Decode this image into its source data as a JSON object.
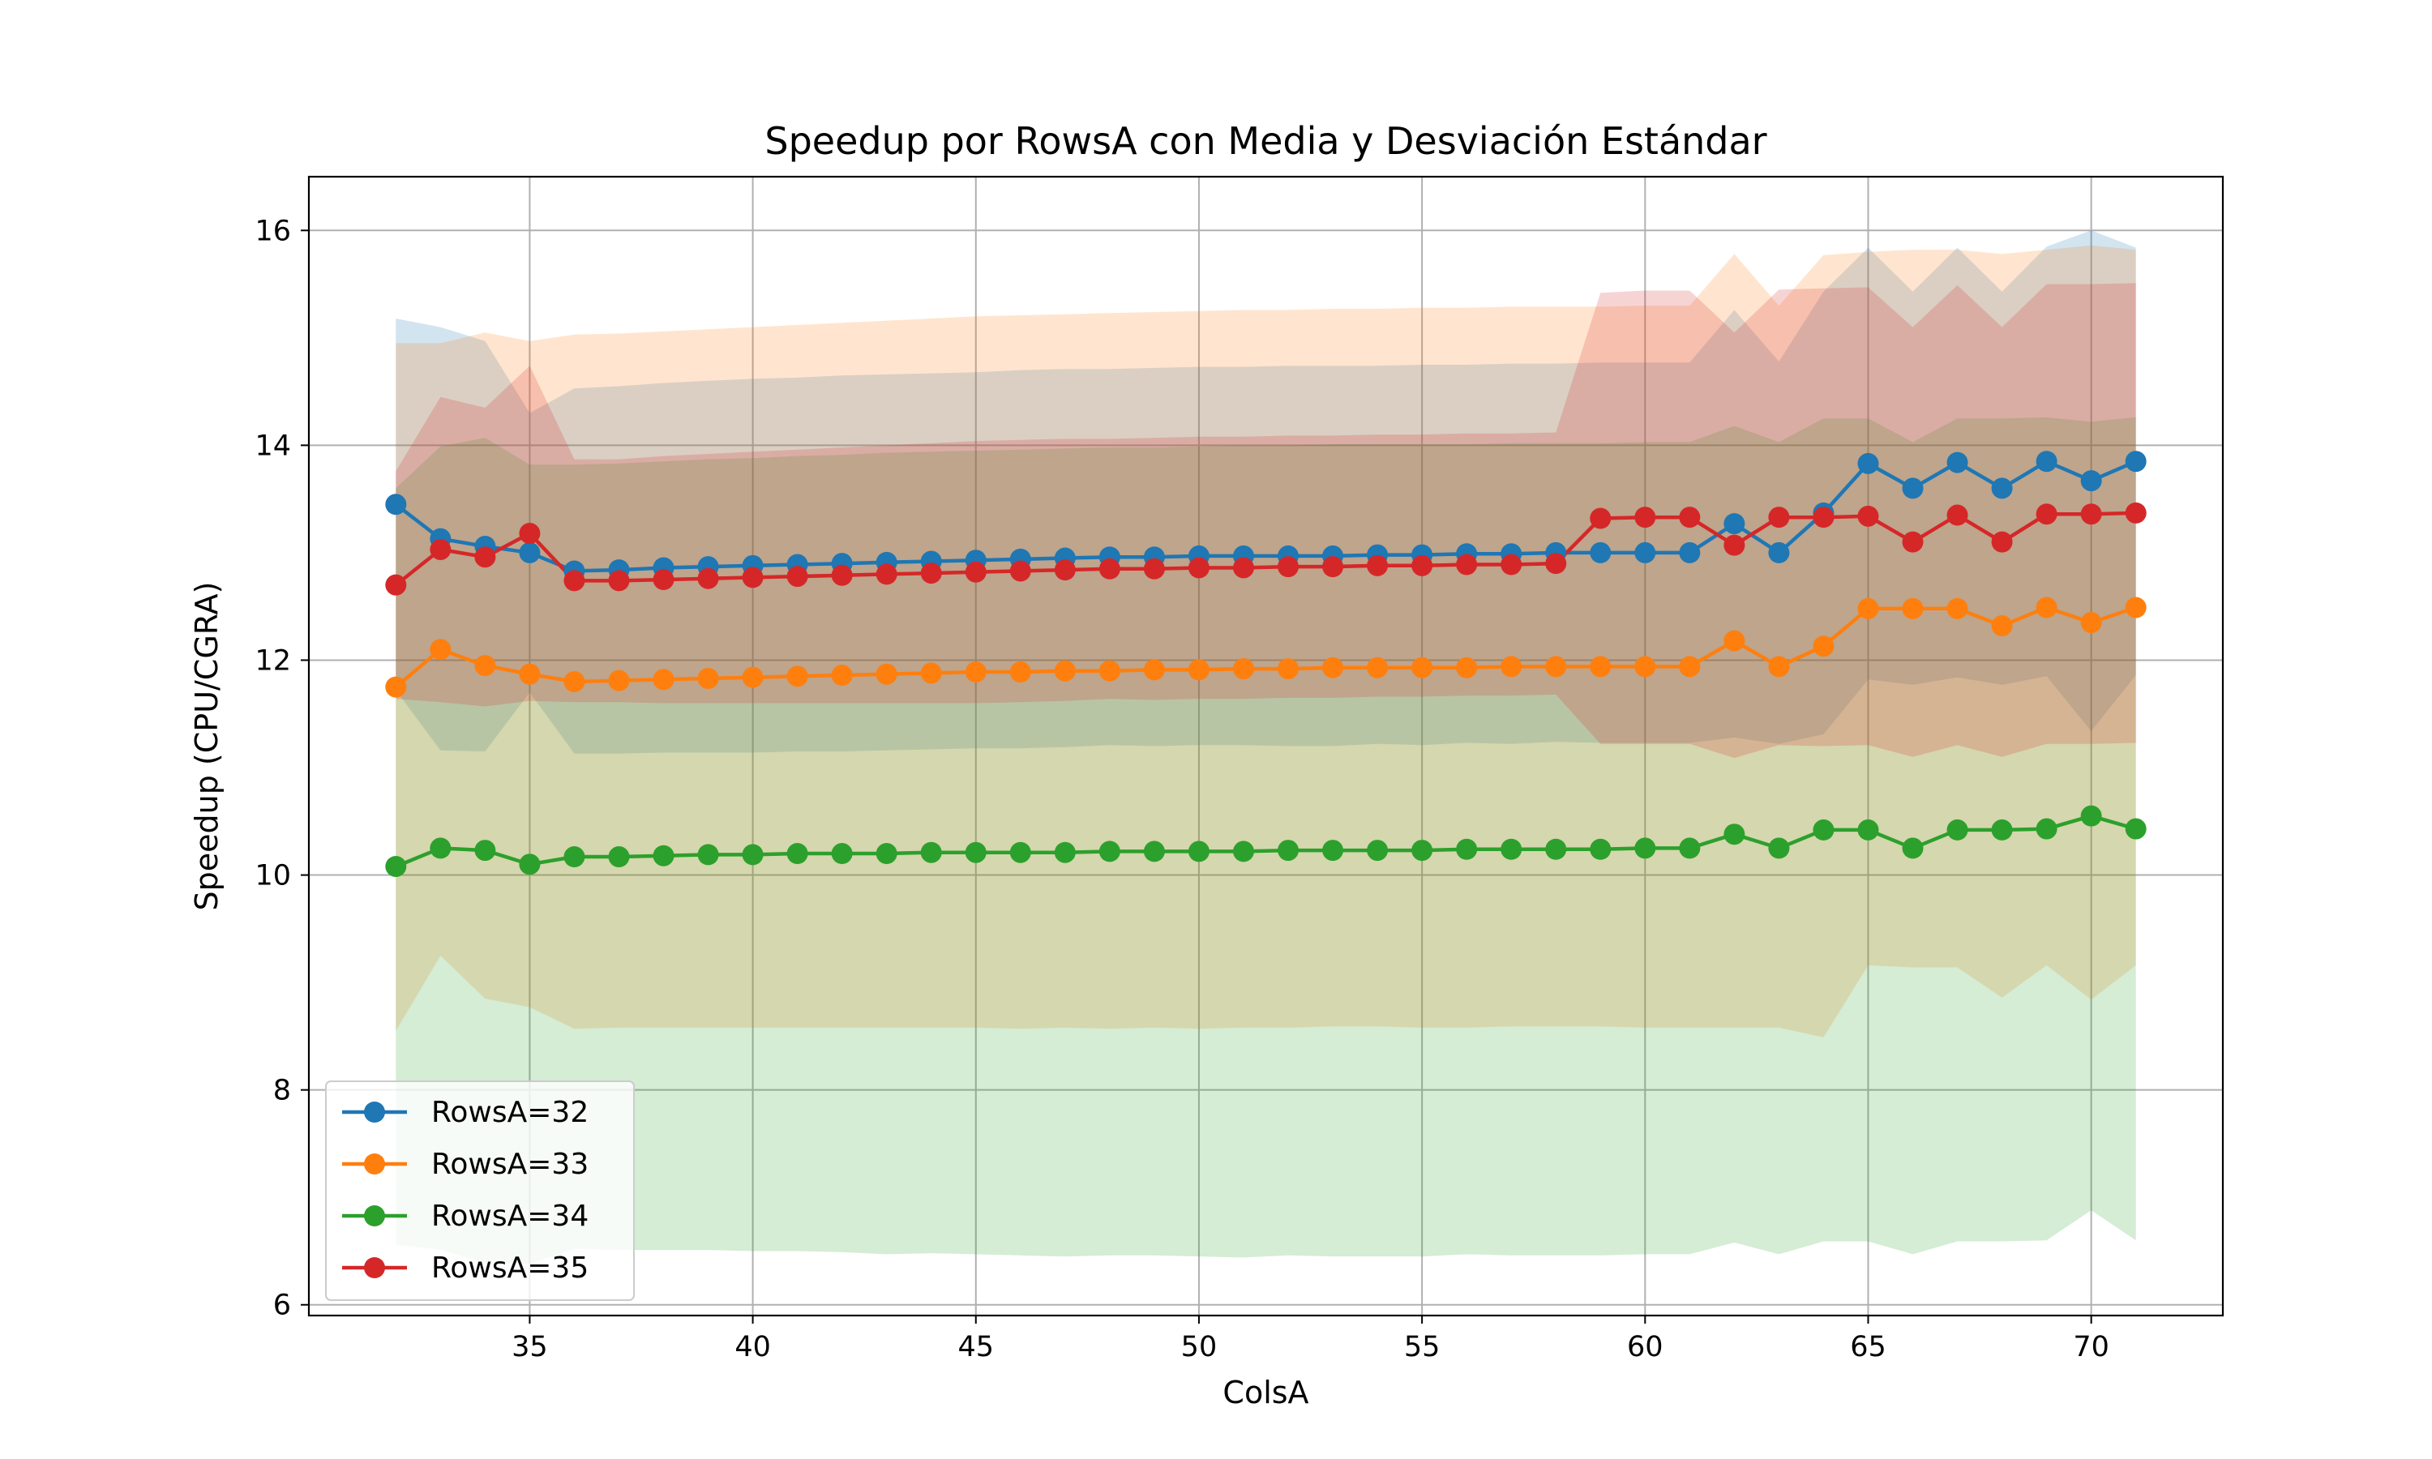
{
  "chart_data": {
    "type": "line",
    "title": "Speedup por RowsA con Media y Desviación Estándar",
    "xlabel": "ColsA",
    "ylabel": "Speedup (CPU/CGRA)",
    "xlim": [
      30.05,
      72.95
    ],
    "ylim": [
      5.9,
      16.5
    ],
    "xticks": [
      35,
      40,
      45,
      50,
      55,
      60,
      65,
      70
    ],
    "yticks": [
      6,
      8,
      10,
      12,
      14,
      16
    ],
    "grid": true,
    "legend_position": "lower-left",
    "x": [
      32,
      33,
      34,
      35,
      36,
      37,
      38,
      39,
      40,
      41,
      42,
      43,
      44,
      45,
      46,
      47,
      48,
      49,
      50,
      51,
      52,
      53,
      54,
      55,
      56,
      57,
      58,
      59,
      60,
      61,
      62,
      63,
      64,
      65,
      66,
      67,
      68,
      69,
      70,
      71
    ],
    "series": [
      {
        "name": "RowsA=32",
        "color": "#1f77b4",
        "values": [
          13.45,
          13.13,
          13.06,
          13.0,
          12.83,
          12.84,
          12.86,
          12.87,
          12.88,
          12.89,
          12.9,
          12.91,
          12.92,
          12.93,
          12.94,
          12.95,
          12.96,
          12.96,
          12.97,
          12.97,
          12.97,
          12.97,
          12.98,
          12.98,
          12.99,
          12.99,
          13.0,
          13.0,
          13.0,
          13.0,
          13.27,
          13.0,
          13.37,
          13.83,
          13.6,
          13.84,
          13.6,
          13.85,
          13.67,
          13.85
        ],
        "std_upper": [
          15.18,
          15.1,
          14.97,
          14.3,
          14.53,
          14.55,
          14.58,
          14.6,
          14.62,
          14.63,
          14.65,
          14.66,
          14.67,
          14.68,
          14.7,
          14.71,
          14.71,
          14.72,
          14.73,
          14.73,
          14.74,
          14.74,
          14.74,
          14.75,
          14.75,
          14.76,
          14.76,
          14.77,
          14.77,
          14.77,
          15.26,
          14.78,
          15.43,
          15.84,
          15.43,
          15.84,
          15.43,
          15.85,
          16.0,
          15.84
        ],
        "std_lower": [
          11.72,
          11.16,
          11.15,
          11.7,
          11.13,
          11.13,
          11.14,
          11.14,
          11.14,
          11.15,
          11.15,
          11.16,
          11.17,
          11.18,
          11.18,
          11.19,
          11.21,
          11.2,
          11.21,
          11.21,
          11.2,
          11.2,
          11.22,
          11.21,
          11.23,
          11.22,
          11.24,
          11.23,
          11.23,
          11.23,
          11.28,
          11.22,
          11.31,
          11.82,
          11.77,
          11.84,
          11.77,
          11.85,
          11.34,
          11.86
        ]
      },
      {
        "name": "RowsA=33",
        "color": "#ff7f0e",
        "values": [
          11.75,
          12.1,
          11.95,
          11.87,
          11.8,
          11.81,
          11.82,
          11.83,
          11.84,
          11.85,
          11.86,
          11.87,
          11.88,
          11.89,
          11.89,
          11.9,
          11.9,
          11.91,
          11.91,
          11.92,
          11.92,
          11.93,
          11.93,
          11.93,
          11.93,
          11.94,
          11.94,
          11.94,
          11.94,
          11.94,
          12.18,
          11.94,
          12.13,
          12.48,
          12.48,
          12.48,
          12.32,
          12.49,
          12.35,
          12.49
        ],
        "std_upper": [
          14.95,
          14.95,
          15.05,
          14.97,
          15.03,
          15.04,
          15.06,
          15.08,
          15.1,
          15.12,
          15.14,
          15.16,
          15.18,
          15.2,
          15.21,
          15.22,
          15.23,
          15.24,
          15.25,
          15.26,
          15.26,
          15.27,
          15.27,
          15.28,
          15.28,
          15.29,
          15.29,
          15.29,
          15.3,
          15.3,
          15.78,
          15.3,
          15.77,
          15.8,
          15.82,
          15.82,
          15.78,
          15.82,
          15.86,
          15.82
        ],
        "std_lower": [
          8.55,
          9.25,
          8.85,
          8.77,
          8.57,
          8.58,
          8.58,
          8.58,
          8.58,
          8.58,
          8.58,
          8.58,
          8.58,
          8.58,
          8.57,
          8.58,
          8.57,
          8.58,
          8.57,
          8.58,
          8.58,
          8.59,
          8.59,
          8.58,
          8.58,
          8.59,
          8.59,
          8.59,
          8.58,
          8.58,
          8.58,
          8.58,
          8.49,
          9.16,
          9.14,
          9.14,
          8.86,
          9.16,
          8.84,
          9.16
        ]
      },
      {
        "name": "RowsA=34",
        "color": "#2ca02c",
        "values": [
          10.08,
          10.25,
          10.23,
          10.1,
          10.17,
          10.17,
          10.18,
          10.19,
          10.19,
          10.2,
          10.2,
          10.2,
          10.21,
          10.21,
          10.21,
          10.21,
          10.22,
          10.22,
          10.22,
          10.22,
          10.23,
          10.23,
          10.23,
          10.23,
          10.24,
          10.24,
          10.24,
          10.24,
          10.25,
          10.25,
          10.38,
          10.25,
          10.42,
          10.42,
          10.25,
          10.42,
          10.42,
          10.43,
          10.55,
          10.43
        ],
        "std_upper": [
          13.6,
          13.99,
          14.07,
          13.82,
          13.82,
          13.83,
          13.85,
          13.87,
          13.88,
          13.9,
          13.91,
          13.93,
          13.94,
          13.95,
          13.96,
          13.97,
          13.98,
          13.98,
          13.99,
          14.0,
          14.0,
          14.01,
          14.01,
          14.01,
          14.01,
          14.02,
          14.02,
          14.02,
          14.03,
          14.03,
          14.18,
          14.03,
          14.25,
          14.25,
          14.03,
          14.25,
          14.25,
          14.26,
          14.22,
          14.26
        ],
        "std_lower": [
          6.56,
          6.51,
          6.39,
          6.38,
          6.52,
          6.51,
          6.51,
          6.51,
          6.5,
          6.5,
          6.49,
          6.47,
          6.48,
          6.47,
          6.46,
          6.45,
          6.46,
          6.46,
          6.45,
          6.44,
          6.46,
          6.45,
          6.45,
          6.45,
          6.47,
          6.46,
          6.46,
          6.46,
          6.47,
          6.47,
          6.58,
          6.47,
          6.59,
          6.59,
          6.47,
          6.59,
          6.59,
          6.6,
          6.88,
          6.6
        ]
      },
      {
        "name": "RowsA=35",
        "color": "#d62728",
        "values": [
          12.7,
          13.03,
          12.96,
          13.18,
          12.74,
          12.74,
          12.75,
          12.76,
          12.77,
          12.78,
          12.79,
          12.8,
          12.81,
          12.82,
          12.83,
          12.84,
          12.85,
          12.85,
          12.86,
          12.86,
          12.87,
          12.87,
          12.88,
          12.88,
          12.89,
          12.89,
          12.9,
          13.32,
          13.33,
          13.33,
          13.07,
          13.33,
          13.33,
          13.34,
          13.1,
          13.35,
          13.1,
          13.36,
          13.36,
          13.37
        ],
        "std_upper": [
          13.76,
          14.45,
          14.35,
          14.74,
          13.87,
          13.87,
          13.9,
          13.92,
          13.94,
          13.96,
          13.98,
          14.0,
          14.02,
          14.04,
          14.05,
          14.06,
          14.06,
          14.07,
          14.08,
          14.08,
          14.09,
          14.09,
          14.1,
          14.1,
          14.11,
          14.11,
          14.12,
          15.42,
          15.44,
          15.44,
          15.05,
          15.45,
          15.46,
          15.47,
          15.1,
          15.49,
          15.1,
          15.5,
          15.5,
          15.51
        ],
        "std_lower": [
          11.64,
          11.61,
          11.57,
          11.62,
          11.61,
          11.61,
          11.6,
          11.6,
          11.6,
          11.6,
          11.6,
          11.6,
          11.6,
          11.6,
          11.61,
          11.62,
          11.64,
          11.63,
          11.64,
          11.64,
          11.65,
          11.65,
          11.66,
          11.66,
          11.67,
          11.67,
          11.68,
          11.22,
          11.22,
          11.22,
          11.09,
          11.21,
          11.2,
          11.21,
          11.1,
          11.21,
          11.1,
          11.22,
          11.22,
          11.23
        ]
      }
    ]
  }
}
